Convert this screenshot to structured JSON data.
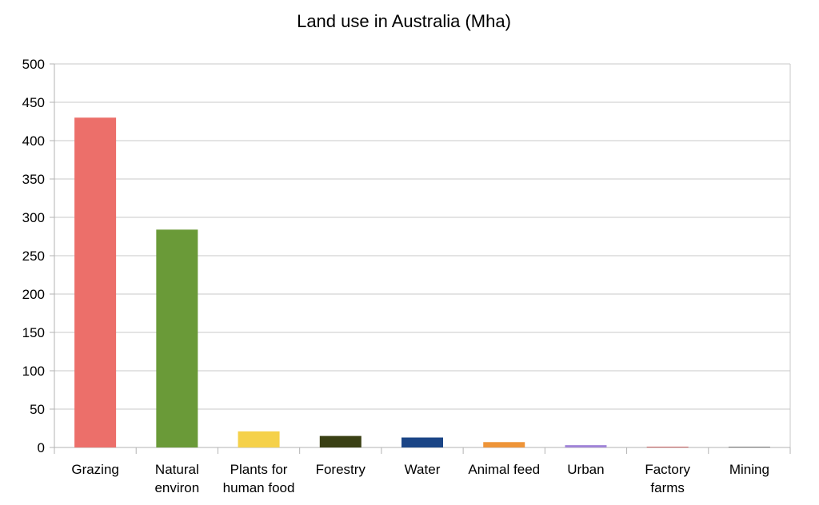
{
  "chart_data": {
    "type": "bar",
    "title": "Land use in Australia (Mha)",
    "xlabel": "",
    "ylabel": "",
    "ylim": [
      0,
      500
    ],
    "y_ticks": [
      "0",
      "50",
      "100",
      "150",
      "200",
      "250",
      "300",
      "350",
      "400",
      "450",
      "500"
    ],
    "grid": true,
    "legend": "none",
    "categories": [
      [
        "Grazing"
      ],
      [
        "Natural",
        "environ"
      ],
      [
        "Plants for",
        "human food"
      ],
      [
        "Forestry"
      ],
      [
        "Water"
      ],
      [
        "Animal feed"
      ],
      [
        "Urban"
      ],
      [
        "Factory",
        "farms"
      ],
      [
        "Mining"
      ]
    ],
    "values": [
      430,
      284,
      21,
      15,
      13,
      7,
      3,
      0.5,
      0.4
    ],
    "colors": [
      "#ec6f6a",
      "#6a9a38",
      "#f5d14a",
      "#3a4014",
      "#1b4586",
      "#ee9438",
      "#a084d8",
      "#c86060",
      "#7a7a7a"
    ]
  }
}
